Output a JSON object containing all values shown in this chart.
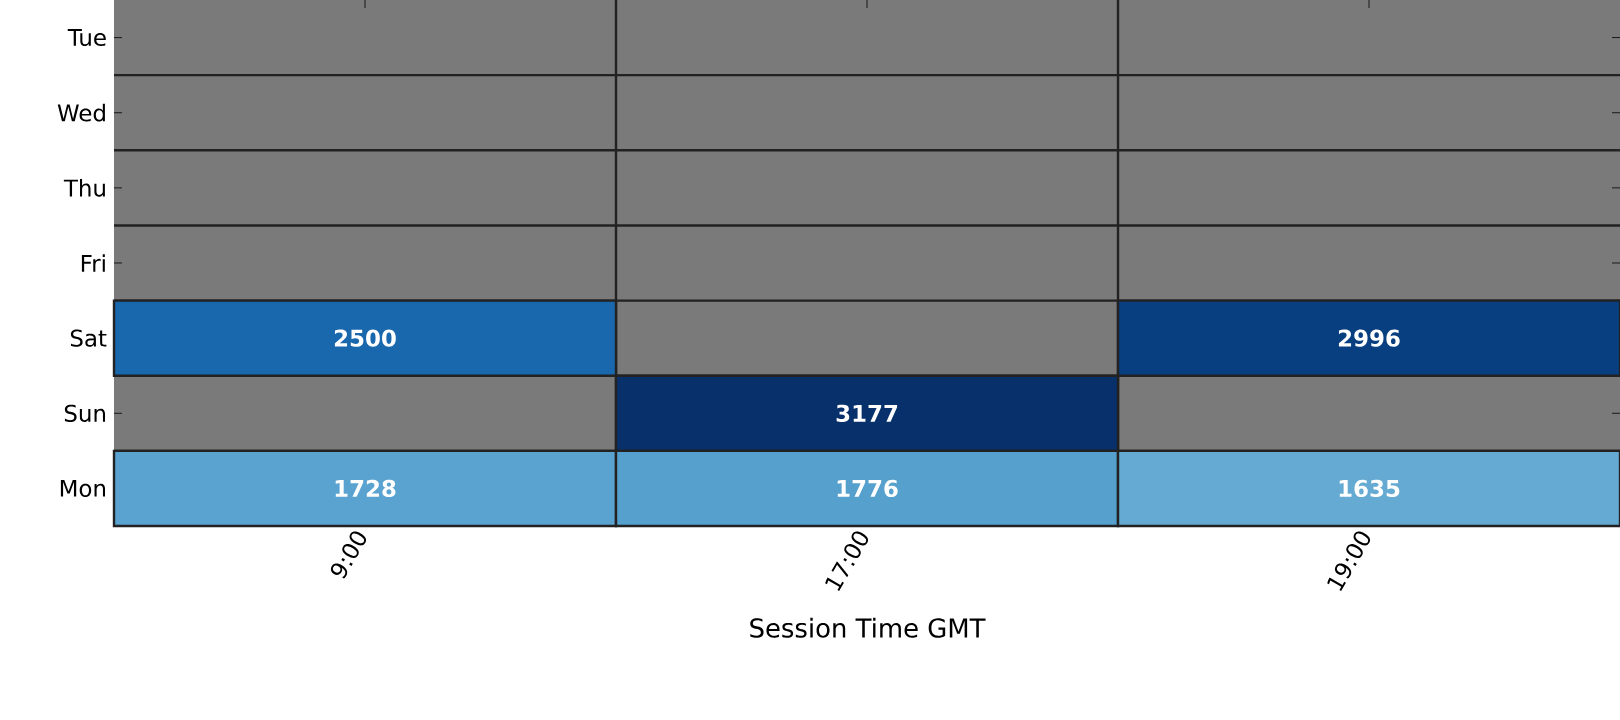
{
  "chart_data": {
    "type": "heatmap",
    "xlabel": "Session Time GMT",
    "categories": [
      "9:00",
      "17:00",
      "19:00"
    ],
    "y_categories": [
      "Tue",
      "Wed",
      "Thu",
      "Fri",
      "Sat",
      "Sun",
      "Mon"
    ],
    "cells": [
      [
        null,
        null,
        null
      ],
      [
        null,
        null,
        null
      ],
      [
        null,
        null,
        null
      ],
      [
        null,
        null,
        null
      ],
      [
        2500,
        null,
        2996
      ],
      [
        null,
        3177,
        null
      ],
      [
        1728,
        1776,
        1635
      ]
    ],
    "data_labels": true
  }
}
